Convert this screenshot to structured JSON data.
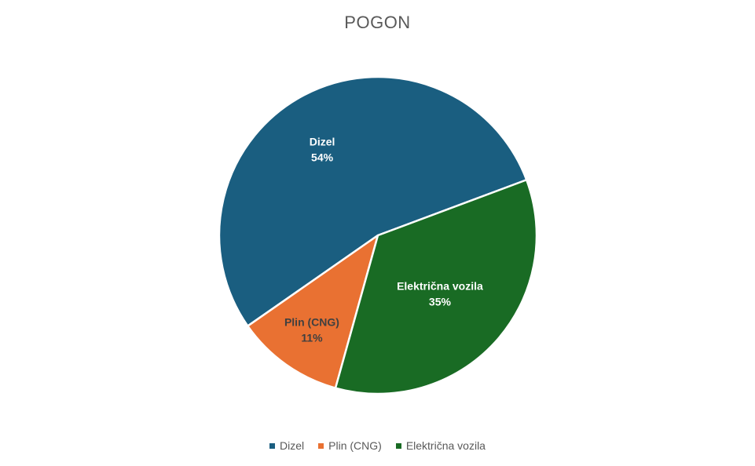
{
  "chart_data": {
    "type": "pie",
    "title": "POGON",
    "slices": [
      {
        "name": "Dizel",
        "value": 54,
        "label": "54%",
        "color": "#1a5e80"
      },
      {
        "name": "Plin (CNG)",
        "value": 11,
        "label": "11%",
        "color": "#e97132"
      },
      {
        "name": "Električna vozila",
        "value": 35,
        "label": "35%",
        "color": "#196b24"
      }
    ],
    "legend": {
      "position": "bottom",
      "entries": [
        "Dizel",
        "Plin (CNG)",
        "Električna vozila"
      ]
    },
    "label_colors": {
      "Dizel": "#ffffff",
      "Plin (CNG)": "#404040",
      "Električna vozila": "#ffffff"
    }
  }
}
